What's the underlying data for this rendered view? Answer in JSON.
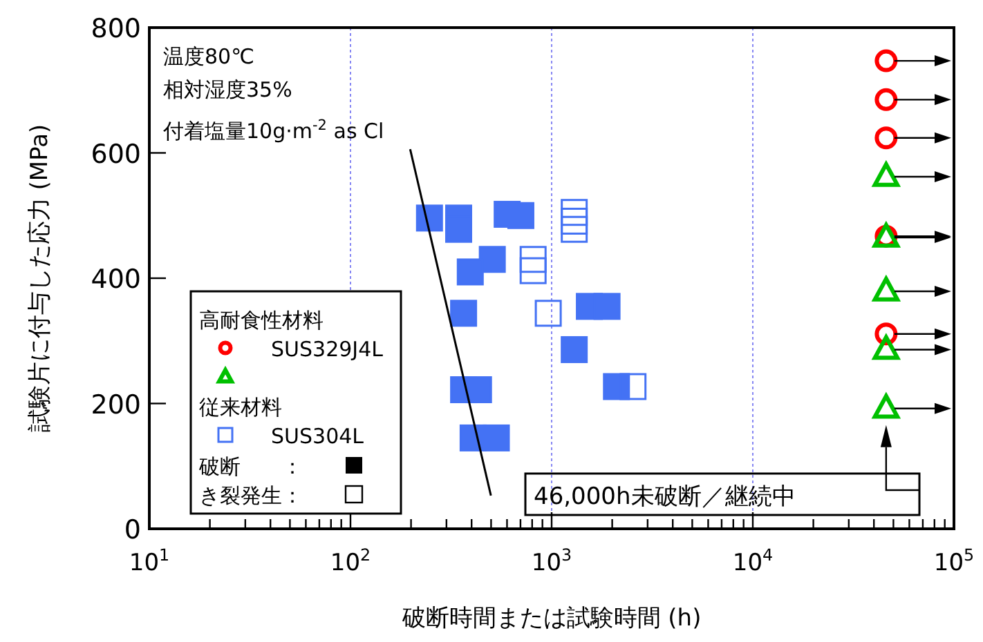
{
  "chart_data": {
    "type": "scatter",
    "xlabel": "破断時間または試験時間 (h)",
    "ylabel": "試験片に付与した応力 (MPa)",
    "log": "x",
    "grid": "x",
    "legend": "bottom left",
    "xlim": [
      10,
      100000
    ],
    "ylim": [
      0,
      800
    ],
    "yticks": [
      0,
      200,
      400,
      600,
      800
    ],
    "xticks": [
      {
        "value": 10,
        "label": "10$^{1}$"
      },
      {
        "value": 20,
        "label": null
      },
      {
        "value": 30,
        "label": null
      },
      {
        "value": 40,
        "label": null
      },
      {
        "value": 50,
        "label": null
      },
      {
        "value": 60,
        "label": null
      },
      {
        "value": 70,
        "label": null
      },
      {
        "value": 80,
        "label": null
      },
      {
        "value": 90,
        "label": null
      },
      {
        "value": 100,
        "label": "10$^{2}$"
      },
      {
        "value": 200,
        "label": null
      },
      {
        "value": 300,
        "label": null
      },
      {
        "value": 400,
        "label": null
      },
      {
        "value": 500,
        "label": null
      },
      {
        "value": 600,
        "label": null
      },
      {
        "value": 700,
        "label": null
      },
      {
        "value": 800,
        "label": null
      },
      {
        "value": 900,
        "label": null
      },
      {
        "value": 1000,
        "label": "10$^{3}$"
      },
      {
        "value": 2000,
        "label": null
      },
      {
        "value": 3000,
        "label": null
      },
      {
        "value": 4000,
        "label": null
      },
      {
        "value": 5000,
        "label": null
      },
      {
        "value": 6000,
        "label": null
      },
      {
        "value": 7000,
        "label": null
      },
      {
        "value": 8000,
        "label": null
      },
      {
        "value": 9000,
        "label": null
      },
      {
        "value": 10000,
        "label": "10$^{4}$"
      },
      {
        "value": 20000,
        "label": null
      },
      {
        "value": 30000,
        "label": null
      },
      {
        "value": 40000,
        "label": null
      },
      {
        "value": 50000,
        "label": null
      },
      {
        "value": 60000,
        "label": null
      },
      {
        "value": 70000,
        "label": null
      },
      {
        "value": 80000,
        "label": null
      },
      {
        "value": 90000,
        "label": null
      },
      {
        "value": 100000,
        "label": "10$^{5}$"
      }
    ],
    "series": [
      {
        "name": "SUS329J4L",
        "color": "#ff0000",
        "marker": "circle",
        "x": [
          46000,
          46000,
          46000,
          46000,
          46000
        ],
        "values": [
          747,
          685,
          624,
          467,
          311
        ]
      },
      {
        "color": "#00c000",
        "marker": "triangle",
        "x": [
          46000,
          46000,
          46000,
          46000,
          46000
        ],
        "values": [
          562,
          465,
          379,
          286,
          192
        ]
      },
      {
        "color": "#4472f4",
        "marker": "square",
        "x": [
          247,
          345,
          345,
          601,
          703,
          507,
          394,
          365,
          365,
          433,
          407,
          531,
          1540,
          1885,
          1295,
          2100
        ],
        "values": [
          496,
          496,
          478,
          502,
          500,
          430,
          410,
          344,
          222,
          222,
          145,
          145,
          355,
          355,
          286,
          227
        ]
      },
      {
        "name": "SUS304L",
        "color": "#4472f4",
        "marker": "square",
        "x": [
          1295,
          1295,
          1295,
          809,
          809,
          962,
          2538
        ],
        "values": [
          505,
          491,
          478,
          430,
          412,
          344,
          227
        ]
      },
      {
        "type": "line",
        "color": "#000000",
        "marker": "none",
        "x": [
          198,
          499
        ],
        "values": [
          606,
          53
        ]
      }
    ],
    "annotations": [
      "温度80℃",
      "相対湿度35%",
      "付着塩量10g·m$^{-2}$ as Cl",
      "高耐食性材料",
      "従来材料",
      "破断　　：",
      "き裂発生：",
      "46,000h未破断／継続中"
    ]
  }
}
